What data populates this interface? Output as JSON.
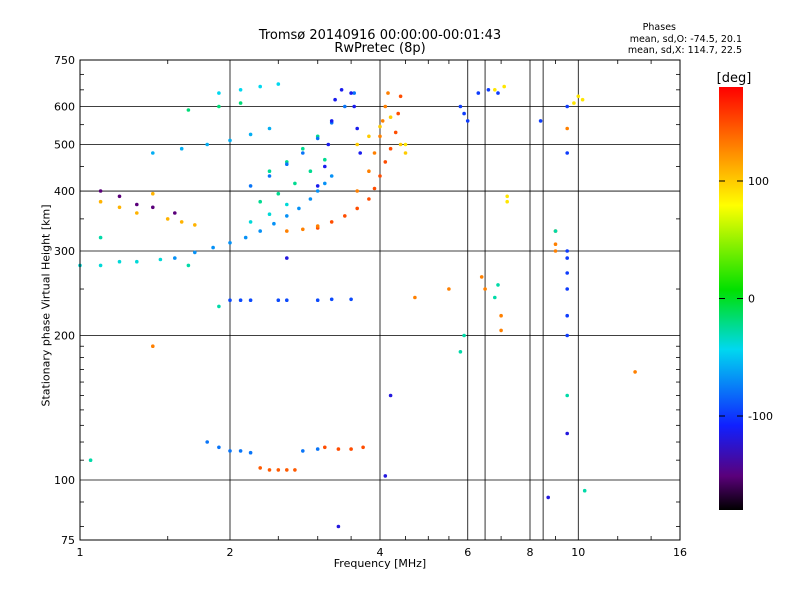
{
  "header": {
    "title_line1": "Tromsø 20140916 00:00:00-00:01:43",
    "title_line2": "RwPretec (8p)",
    "stats_title": "Phases",
    "stats_o": "mean, sd,O: -74.5, 20.1",
    "stats_x": "mean, sd,X: 114.7, 22.5"
  },
  "colorbar": {
    "unit_label": "[deg]",
    "ticks": [
      "100",
      "0",
      "-100"
    ],
    "tick_values": [
      100,
      0,
      -100
    ],
    "range": [
      -180,
      180
    ]
  },
  "chart_data": {
    "type": "scatter",
    "xlabel": "Frequency [MHz]",
    "ylabel": "Stationary phase Virtual Height [km]",
    "x_scale": "log",
    "y_scale": "log",
    "xlim": [
      1,
      16
    ],
    "ylim": [
      75,
      750
    ],
    "x_ticks": [
      1,
      2,
      4,
      6,
      8,
      10,
      16
    ],
    "x_tick_labels": [
      "1",
      "2",
      "4",
      "6",
      "8",
      "10",
      "16"
    ],
    "y_ticks": [
      75,
      100,
      200,
      300,
      400,
      500,
      600,
      750
    ],
    "y_tick_labels": [
      "75",
      "100",
      "200",
      "300",
      "400",
      "500",
      "600",
      "750"
    ],
    "grid": true,
    "extra_vertical_gridlines": [
      6.5,
      8.5
    ],
    "color_scale": "rainbow phase, -180 (black) to 180 (red)",
    "series": [
      {
        "phase": -70,
        "points": [
          [
            1.55,
            290
          ],
          [
            1.7,
            298
          ],
          [
            1.85,
            305
          ],
          [
            2.0,
            312
          ],
          [
            2.15,
            320
          ],
          [
            2.3,
            330
          ],
          [
            2.45,
            342
          ],
          [
            2.6,
            355
          ],
          [
            2.75,
            368
          ],
          [
            2.9,
            385
          ],
          [
            3.0,
            400
          ],
          [
            3.1,
            415
          ],
          [
            3.2,
            430
          ]
        ]
      },
      {
        "phase": -40,
        "points": [
          [
            1.0,
            280
          ],
          [
            1.1,
            280
          ],
          [
            1.2,
            285
          ],
          [
            1.3,
            285
          ],
          [
            1.45,
            288
          ],
          [
            2.2,
            345
          ],
          [
            2.4,
            358
          ],
          [
            2.6,
            375
          ]
        ]
      },
      {
        "phase": -25,
        "points": [
          [
            2.3,
            380
          ],
          [
            2.5,
            395
          ],
          [
            2.7,
            415
          ],
          [
            2.9,
            440
          ],
          [
            3.1,
            465
          ],
          [
            2.4,
            440
          ],
          [
            2.6,
            460
          ],
          [
            2.8,
            490
          ],
          [
            3.0,
            520
          ]
        ]
      },
      {
        "phase": -80,
        "points": [
          [
            2.2,
            410
          ],
          [
            2.4,
            430
          ],
          [
            2.6,
            455
          ],
          [
            2.8,
            480
          ],
          [
            3.0,
            515
          ],
          [
            3.2,
            555
          ],
          [
            3.4,
            600
          ],
          [
            3.55,
            640
          ]
        ]
      },
      {
        "phase": -115,
        "points": [
          [
            3.0,
            410
          ],
          [
            3.1,
            450
          ],
          [
            3.15,
            500
          ],
          [
            3.2,
            560
          ],
          [
            3.25,
            620
          ],
          [
            3.35,
            650
          ],
          [
            3.5,
            640
          ],
          [
            3.55,
            600
          ],
          [
            3.6,
            540
          ],
          [
            3.65,
            480
          ]
        ]
      },
      {
        "phase": -60,
        "points": [
          [
            1.4,
            480
          ],
          [
            1.6,
            490
          ],
          [
            1.8,
            500
          ],
          [
            2.0,
            510
          ],
          [
            2.2,
            525
          ],
          [
            2.4,
            540
          ]
        ]
      },
      {
        "phase": -45,
        "points": [
          [
            1.9,
            640
          ],
          [
            2.1,
            650
          ],
          [
            2.3,
            660
          ],
          [
            2.5,
            668
          ]
        ]
      },
      {
        "phase": -20,
        "points": [
          [
            1.65,
            590
          ],
          [
            1.9,
            600
          ],
          [
            2.1,
            610
          ]
        ]
      },
      {
        "phase": 150,
        "points": [
          [
            3.0,
            335
          ],
          [
            3.2,
            345
          ],
          [
            3.4,
            355
          ],
          [
            3.6,
            368
          ],
          [
            3.8,
            385
          ],
          [
            3.9,
            405
          ],
          [
            4.0,
            430
          ],
          [
            4.1,
            460
          ],
          [
            4.2,
            490
          ],
          [
            4.3,
            530
          ],
          [
            4.35,
            580
          ],
          [
            4.4,
            630
          ]
        ]
      },
      {
        "phase": 130,
        "points": [
          [
            2.6,
            330
          ],
          [
            2.8,
            333
          ],
          [
            3.0,
            338
          ],
          [
            3.6,
            400
          ],
          [
            3.8,
            440
          ],
          [
            3.9,
            480
          ],
          [
            4.0,
            520
          ],
          [
            4.05,
            560
          ],
          [
            4.1,
            600
          ],
          [
            4.15,
            640
          ]
        ]
      },
      {
        "phase": 100,
        "points": [
          [
            3.6,
            500
          ],
          [
            3.8,
            520
          ],
          [
            4.0,
            545
          ],
          [
            4.2,
            570
          ],
          [
            4.4,
            500
          ],
          [
            4.5,
            480
          ]
        ]
      },
      {
        "phase": -80,
        "points": [
          [
            1.8,
            120
          ],
          [
            1.9,
            117
          ],
          [
            2.0,
            115
          ],
          [
            2.1,
            115
          ],
          [
            2.2,
            114
          ],
          [
            2.8,
            115
          ],
          [
            3.0,
            116
          ]
        ]
      },
      {
        "phase": 150,
        "points": [
          [
            3.1,
            117
          ],
          [
            3.3,
            116
          ],
          [
            3.5,
            116
          ],
          [
            3.7,
            117
          ]
        ]
      },
      {
        "phase": 145,
        "points": [
          [
            2.3,
            106
          ],
          [
            2.4,
            105
          ],
          [
            2.5,
            105
          ],
          [
            2.6,
            105
          ],
          [
            2.7,
            105
          ]
        ]
      },
      {
        "phase": -95,
        "points": [
          [
            2.0,
            237
          ],
          [
            2.1,
            237
          ],
          [
            2.2,
            237
          ],
          [
            2.5,
            237
          ],
          [
            2.6,
            237
          ],
          [
            3.0,
            237
          ],
          [
            3.2,
            238
          ],
          [
            3.5,
            238
          ]
        ]
      },
      {
        "phase": 110,
        "points": [
          [
            1.1,
            380
          ],
          [
            1.2,
            370
          ],
          [
            1.3,
            360
          ],
          [
            1.4,
            395
          ],
          [
            1.5,
            350
          ],
          [
            1.6,
            345
          ],
          [
            1.7,
            340
          ]
        ]
      },
      {
        "phase": -150,
        "points": [
          [
            1.1,
            400
          ],
          [
            1.2,
            390
          ],
          [
            1.3,
            375
          ],
          [
            1.4,
            370
          ],
          [
            1.55,
            360
          ]
        ]
      },
      {
        "phase": -100,
        "points": [
          [
            5.8,
            600
          ],
          [
            5.9,
            580
          ],
          [
            6.0,
            560
          ],
          [
            6.3,
            640
          ],
          [
            6.6,
            650
          ],
          [
            6.9,
            640
          ],
          [
            8.4,
            560
          ],
          [
            9.5,
            480
          ],
          [
            9.5,
            600
          ],
          [
            9.5,
            250
          ],
          [
            9.5,
            270
          ],
          [
            9.5,
            290
          ],
          [
            9.5,
            300
          ],
          [
            9.5,
            220
          ],
          [
            9.5,
            200
          ]
        ]
      },
      {
        "phase": 130,
        "points": [
          [
            4.7,
            240
          ],
          [
            5.5,
            250
          ],
          [
            6.4,
            265
          ],
          [
            6.5,
            250
          ],
          [
            7.0,
            220
          ],
          [
            7.0,
            205
          ],
          [
            1.4,
            190
          ],
          [
            9.0,
            330
          ],
          [
            9.0,
            310
          ],
          [
            9.0,
            300
          ],
          [
            9.5,
            540
          ],
          [
            13.0,
            168
          ]
        ]
      },
      {
        "phase": 90,
        "points": [
          [
            6.8,
            650
          ],
          [
            7.1,
            660
          ],
          [
            9.8,
            610
          ],
          [
            10.2,
            620
          ],
          [
            10.0,
            630
          ],
          [
            7.2,
            390
          ],
          [
            7.2,
            380
          ],
          [
            4.5,
            500
          ]
        ]
      },
      {
        "phase": -30,
        "points": [
          [
            6.8,
            240
          ],
          [
            6.9,
            255
          ],
          [
            9.0,
            330
          ],
          [
            9.5,
            150
          ],
          [
            10.3,
            95
          ],
          [
            1.65,
            280
          ],
          [
            1.9,
            230
          ],
          [
            1.1,
            320
          ],
          [
            1.05,
            110
          ],
          [
            5.8,
            185
          ],
          [
            5.9,
            200
          ]
        ]
      },
      {
        "phase": -120,
        "points": [
          [
            4.2,
            150
          ],
          [
            4.1,
            102
          ],
          [
            3.3,
            80
          ],
          [
            9.5,
            125
          ],
          [
            8.7,
            92
          ],
          [
            2.6,
            290
          ]
        ]
      }
    ]
  }
}
